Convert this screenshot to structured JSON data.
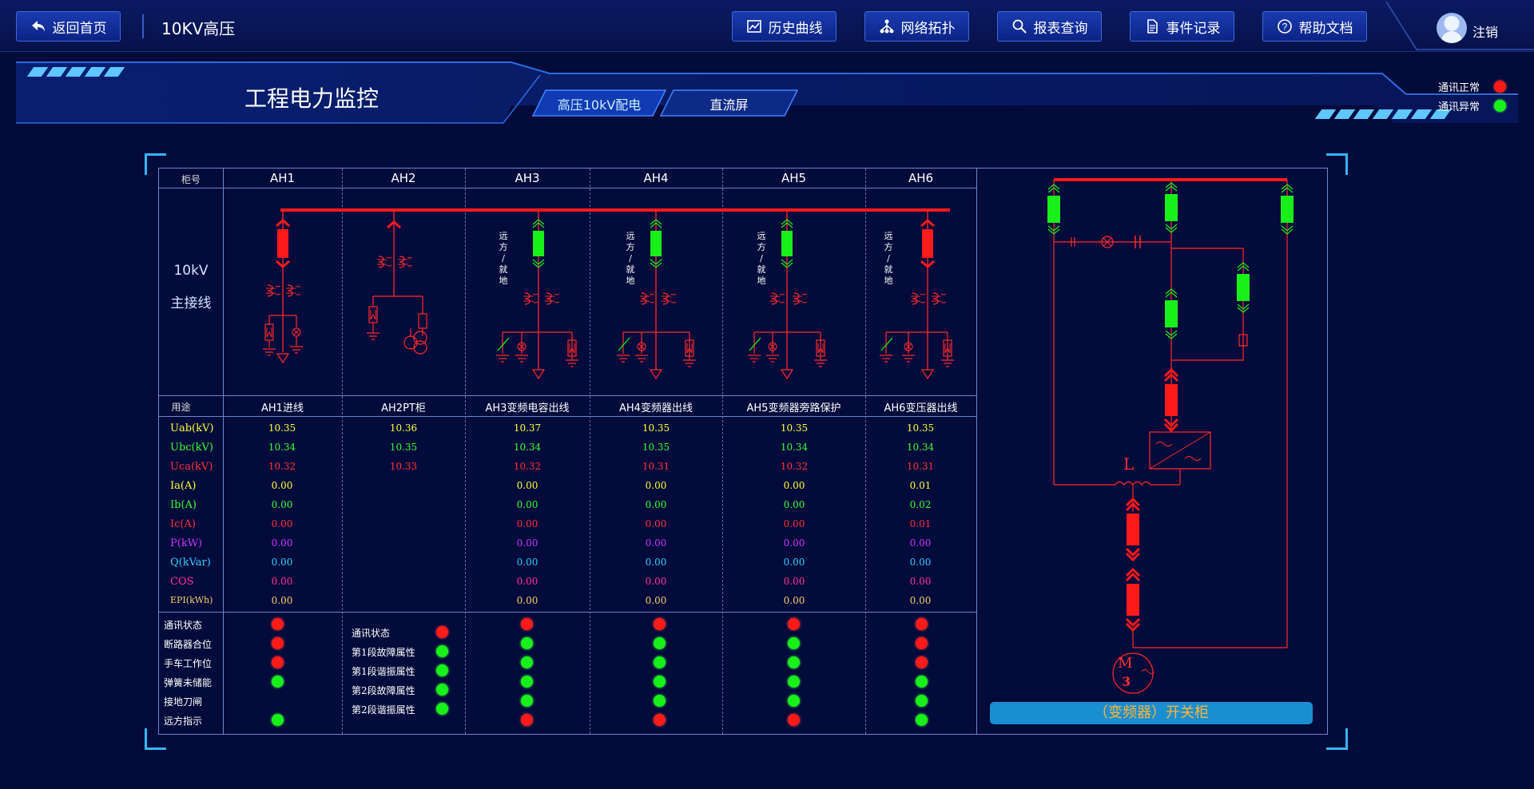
{
  "topbar": {
    "back_label": "返回首页",
    "page_title": "10KV高压",
    "buttons": [
      "历史曲线",
      "网络拓扑",
      "报表查询",
      "事件记录",
      "帮助文档"
    ],
    "logout_label": "注销"
  },
  "header": {
    "title": "工程电力监控",
    "tabs": [
      "高压10kV配电",
      "直流屏"
    ],
    "legend": [
      {
        "label": "通讯正常",
        "color": "red"
      },
      {
        "label": "通讯异常",
        "color": "green"
      }
    ]
  },
  "table": {
    "cabinet_header": "柜号",
    "cabinets": [
      "AH1",
      "AH2",
      "AH3",
      "AH4",
      "AH5",
      "AH6"
    ],
    "bus_label": "10kV",
    "bus_label2": "主接线",
    "remote_label": [
      "远",
      "方",
      "/",
      "就",
      "地"
    ],
    "usage_header": "用途",
    "usages": [
      "AH1进线",
      "AH2PT柜",
      "AH3变频电容出线",
      "AH4变频器出线",
      "AH5变频器旁路保护",
      "AH6变压器出线"
    ],
    "measure_labels": [
      "Uab(kV)",
      "Ubc(kV)",
      "Uca(kV)",
      "Ia(A)",
      "Ib(A)",
      "Ic(A)",
      "P(kW)",
      "Q(kVar)",
      "COS",
      "EPI(kWh)"
    ],
    "measure_colors": [
      "#ffff33",
      "#33ff33",
      "#ff3333",
      "#ffff33",
      "#33ff33",
      "#ff3333",
      "#cc33ff",
      "#33ccff",
      "#ff3399",
      "#ffcc66"
    ],
    "measurements": [
      [
        "10.35",
        "10.34",
        "10.32",
        "0.00",
        "0.00",
        "0.00",
        "0.00",
        "0.00",
        "0.00",
        "0.00"
      ],
      [
        "10.36",
        "10.35",
        "10.33",
        "",
        "",
        "",
        "",
        "",
        "",
        ""
      ],
      [
        "10.37",
        "10.34",
        "10.32",
        "0.00",
        "0.00",
        "0.00",
        "0.00",
        "0.00",
        "0.00",
        "0.00"
      ],
      [
        "10.35",
        "10.35",
        "10.31",
        "0.00",
        "0.00",
        "0.00",
        "0.00",
        "0.00",
        "0.00",
        "0.00"
      ],
      [
        "10.35",
        "10.34",
        "10.32",
        "0.00",
        "0.00",
        "0.00",
        "0.00",
        "0.00",
        "0.00",
        "0.00"
      ],
      [
        "10.35",
        "10.34",
        "10.31",
        "0.01",
        "0.02",
        "0.01",
        "0.00",
        "0.00",
        "0.00",
        "0.00"
      ]
    ],
    "status_labels": [
      "通讯状态",
      "断路器合位",
      "手车工作位",
      "弹簧未储能",
      "接地刀闸",
      "远方指示"
    ],
    "pt_status_labels": [
      "通讯状态",
      "第1段故障属性",
      "第1段谐振属性",
      "第2段故障属性",
      "第2段谐振属性"
    ],
    "status": [
      [
        "red",
        "red",
        "red",
        "green",
        "",
        "green"
      ],
      [
        "red",
        "green",
        "green",
        "green",
        "green",
        ""
      ],
      [
        "red",
        "green",
        "green",
        "green",
        "green",
        "red"
      ],
      [
        "red",
        "green",
        "green",
        "green",
        "green",
        "red"
      ],
      [
        "red",
        "green",
        "green",
        "green",
        "green",
        "red"
      ],
      [
        "red",
        "red",
        "red",
        "green",
        "green",
        "green"
      ]
    ]
  },
  "diagram": {
    "inductor_label": "L",
    "motor_label": "M",
    "motor_sub": "3",
    "cabinet_caption": "（变频器）开关柜"
  }
}
